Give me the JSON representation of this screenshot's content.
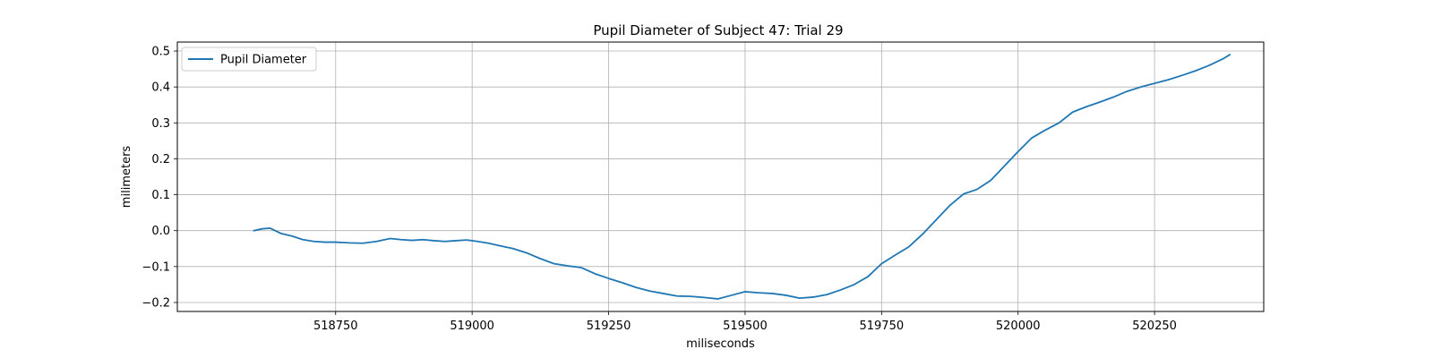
{
  "chart_data": {
    "type": "line",
    "title": "Pupil Diameter of Subject 47: Trial 29",
    "xlabel": "miliseconds",
    "ylabel": "milimeters",
    "xlim": [
      518460,
      520450
    ],
    "ylim": [
      -0.225,
      0.525
    ],
    "xticks": [
      518750,
      519000,
      519250,
      519500,
      519750,
      520000,
      520250
    ],
    "yticks": [
      -0.2,
      -0.1,
      0.0,
      0.1,
      0.2,
      0.3,
      0.4,
      0.5
    ],
    "xtick_labels": [
      "518750",
      "519000",
      "519250",
      "519500",
      "519750",
      "520000",
      "520250"
    ],
    "ytick_labels": [
      "−0.2",
      "−0.1",
      "0.0",
      "0.1",
      "0.2",
      "0.3",
      "0.4",
      "0.5"
    ],
    "grid": true,
    "legend": {
      "position": "top-left",
      "entries": [
        "Pupil Diameter"
      ]
    },
    "series": [
      {
        "name": "Pupil Diameter",
        "color": "#1f77b4",
        "x": [
          518600,
          518615,
          518630,
          518650,
          518670,
          518690,
          518710,
          518730,
          518750,
          518775,
          518800,
          518825,
          518850,
          518870,
          518890,
          518910,
          518930,
          518950,
          518970,
          518990,
          519010,
          519030,
          519050,
          519075,
          519100,
          519125,
          519150,
          519175,
          519200,
          519225,
          519250,
          519275,
          519300,
          519325,
          519350,
          519375,
          519400,
          519425,
          519450,
          519475,
          519500,
          519525,
          519550,
          519575,
          519600,
          519625,
          519650,
          519675,
          519700,
          519725,
          519750,
          519775,
          519800,
          519825,
          519850,
          519875,
          519900,
          519925,
          519950,
          519975,
          520000,
          520025,
          520050,
          520075,
          520100,
          520125,
          520150,
          520175,
          520200,
          520225,
          520250,
          520275,
          520300,
          520325,
          520350,
          520375,
          520388
        ],
        "y": [
          0.0,
          0.005,
          0.007,
          -0.008,
          -0.015,
          -0.025,
          -0.03,
          -0.032,
          -0.032,
          -0.034,
          -0.035,
          -0.03,
          -0.022,
          -0.025,
          -0.027,
          -0.025,
          -0.028,
          -0.03,
          -0.028,
          -0.026,
          -0.03,
          -0.035,
          -0.042,
          -0.05,
          -0.062,
          -0.078,
          -0.092,
          -0.098,
          -0.103,
          -0.12,
          -0.133,
          -0.145,
          -0.158,
          -0.168,
          -0.175,
          -0.182,
          -0.183,
          -0.186,
          -0.19,
          -0.18,
          -0.17,
          -0.173,
          -0.175,
          -0.18,
          -0.188,
          -0.185,
          -0.178,
          -0.165,
          -0.15,
          -0.128,
          -0.092,
          -0.068,
          -0.045,
          -0.01,
          0.03,
          0.07,
          0.102,
          0.115,
          0.14,
          0.18,
          0.22,
          0.258,
          0.28,
          0.3,
          0.33,
          0.345,
          0.358,
          0.372,
          0.388,
          0.4,
          0.41,
          0.42,
          0.432,
          0.445,
          0.46,
          0.478,
          0.49
        ]
      }
    ]
  }
}
